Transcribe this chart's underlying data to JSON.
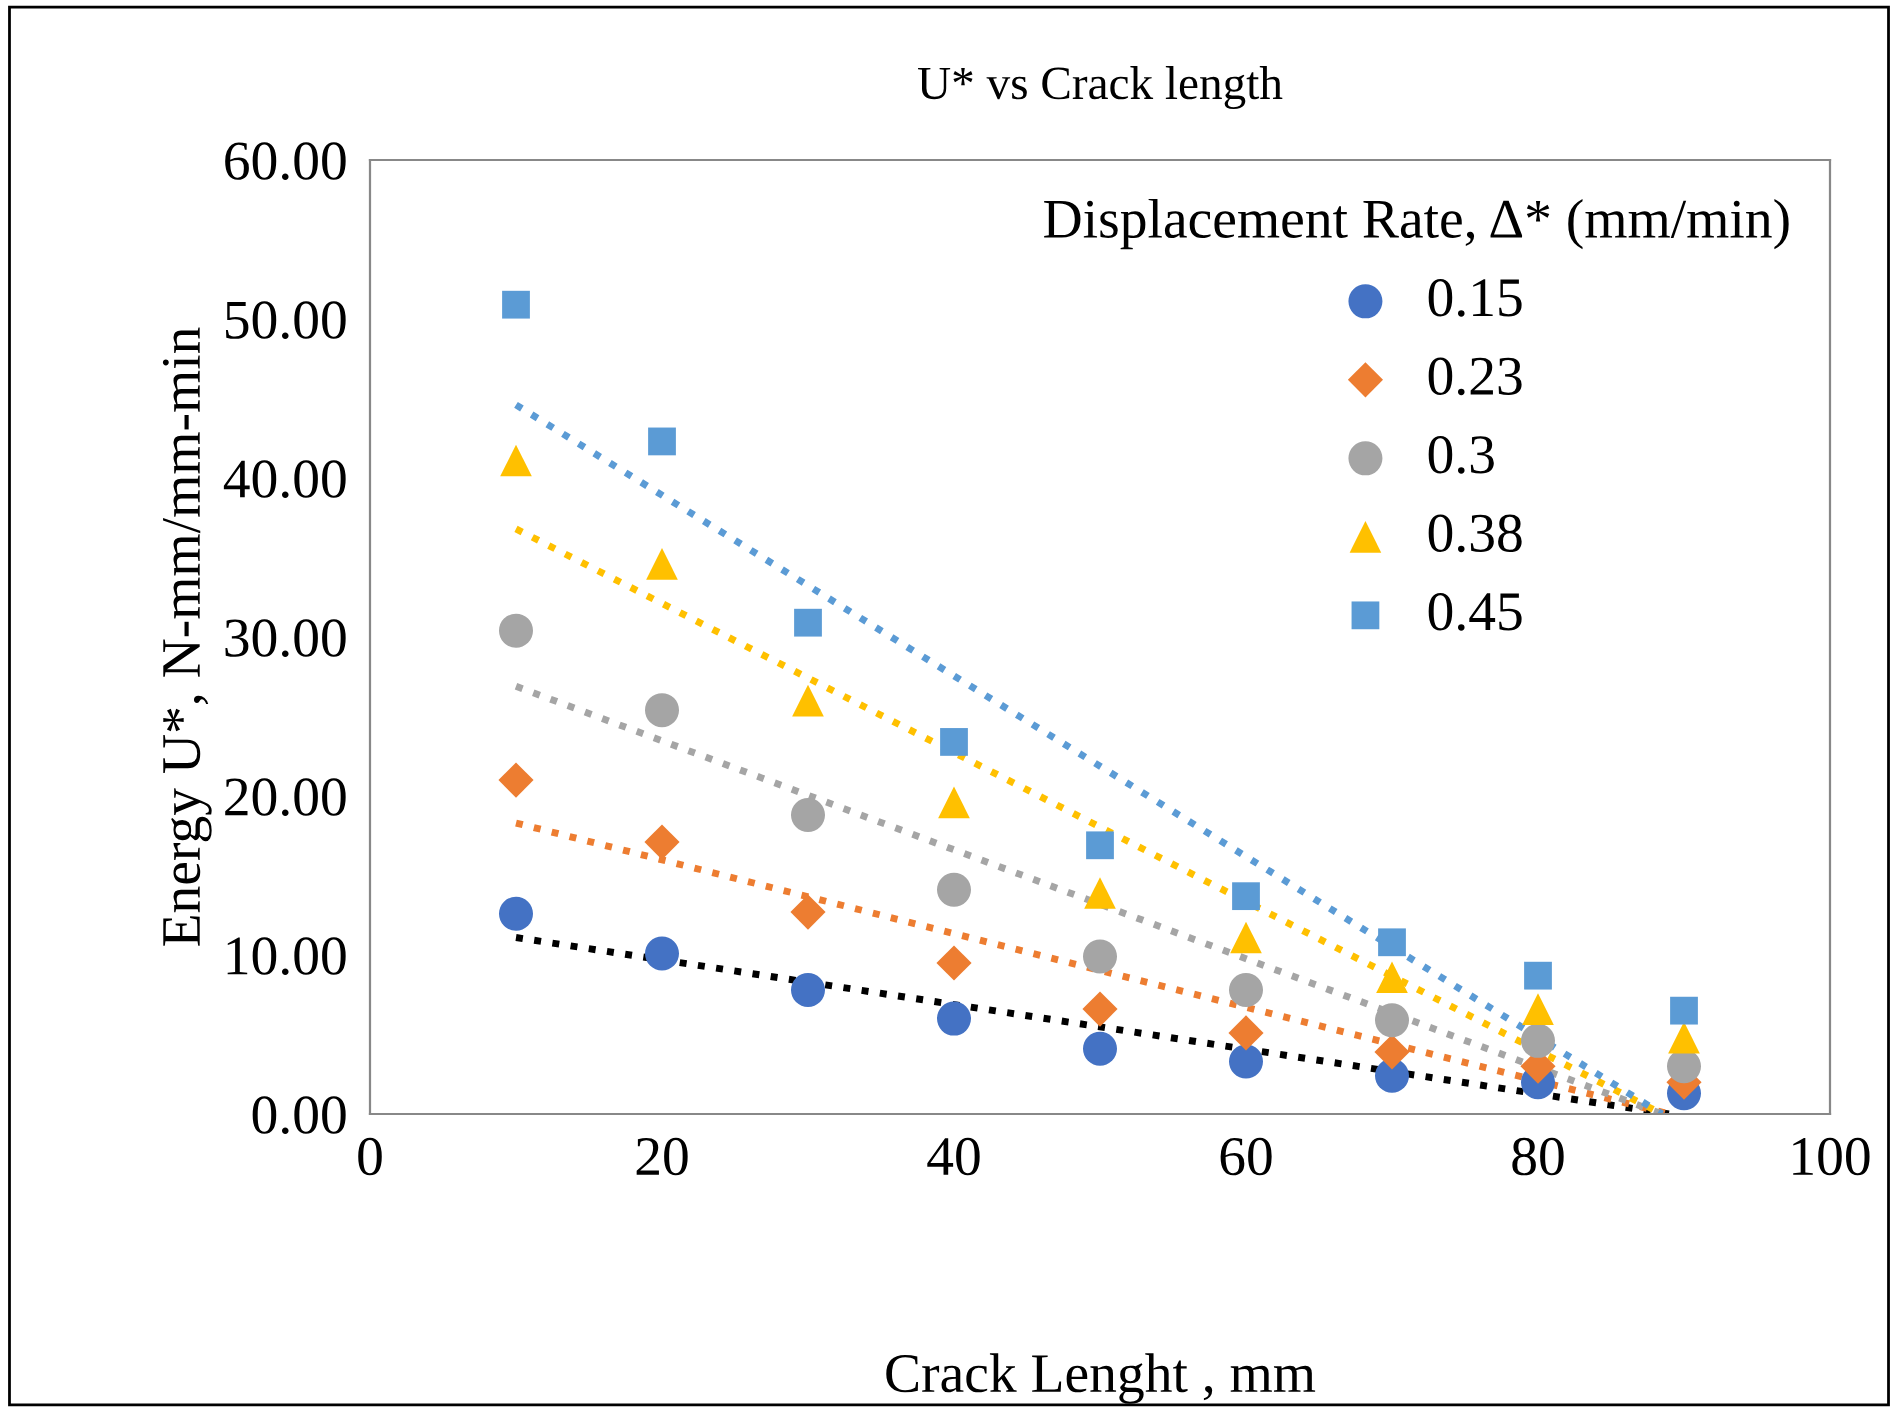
{
  "chart_data": {
    "type": "scatter",
    "title": "U* vs Crack length",
    "xlabel": "Crack Lenght , mm",
    "ylabel": "Energy U*, N-mm/mm-min",
    "legend_title": "Displacement Rate, Δ* (mm/min)",
    "x": [
      10,
      20,
      30,
      40,
      50,
      60,
      70,
      80,
      90
    ],
    "series": [
      {
        "name": "0.15",
        "color": "#4472c4",
        "marker": "circle",
        "values": [
          12.6,
          10.1,
          7.8,
          6.0,
          4.1,
          3.3,
          2.4,
          2.0,
          1.3
        ]
      },
      {
        "name": "0.23",
        "color": "#ed7d31",
        "marker": "diamond",
        "values": [
          21.0,
          17.1,
          12.7,
          9.5,
          6.6,
          5.1,
          3.9,
          3.0,
          2.0
        ]
      },
      {
        "name": "0.3",
        "color": "#a5a5a5",
        "marker": "circle",
        "values": [
          30.4,
          25.4,
          18.8,
          14.1,
          9.9,
          7.8,
          5.9,
          4.6,
          3.0
        ]
      },
      {
        "name": "0.38",
        "color": "#ffc000",
        "marker": "triangle",
        "values": [
          41.1,
          34.6,
          26.0,
          19.6,
          13.9,
          11.1,
          8.6,
          6.6,
          4.8
        ]
      },
      {
        "name": "0.45",
        "color": "#5b9bd5",
        "marker": "square",
        "values": [
          50.9,
          42.3,
          30.9,
          23.4,
          16.9,
          13.7,
          10.8,
          8.7,
          6.5
        ]
      },
      {
        "type": "line",
        "color": "#000000",
        "line_style": "dotted",
        "x": [
          10,
          89
        ],
        "values": [
          11.1,
          0
        ]
      },
      {
        "type": "line",
        "color": "#ed7d31",
        "line_style": "dotted",
        "x": [
          10,
          89
        ],
        "values": [
          18.3,
          0
        ]
      },
      {
        "type": "line",
        "color": "#a5a5a5",
        "line_style": "dotted",
        "x": [
          10,
          88.5
        ],
        "values": [
          26.9,
          0
        ]
      },
      {
        "type": "line",
        "color": "#ffc000",
        "line_style": "dotted",
        "x": [
          10,
          88.5
        ],
        "values": [
          36.8,
          0
        ]
      },
      {
        "type": "line",
        "color": "#5b9bd5",
        "line_style": "dotted",
        "x": [
          10,
          88.5
        ],
        "values": [
          44.6,
          0
        ]
      }
    ],
    "xlim": [
      0,
      100
    ],
    "xticks": [
      0,
      20,
      40,
      60,
      80,
      100
    ],
    "ylim": [
      0,
      60
    ],
    "yticks": [
      {
        "value": 0,
        "label": "0.00"
      },
      {
        "value": 10,
        "label": "10.00"
      },
      {
        "value": 20,
        "label": "20.00"
      },
      {
        "value": 30,
        "label": "30.00"
      },
      {
        "value": 40,
        "label": "40.00"
      },
      {
        "value": 50,
        "label": "50.00"
      },
      {
        "value": 60,
        "label": "60.00"
      }
    ],
    "grid": false,
    "legend": "top right"
  }
}
